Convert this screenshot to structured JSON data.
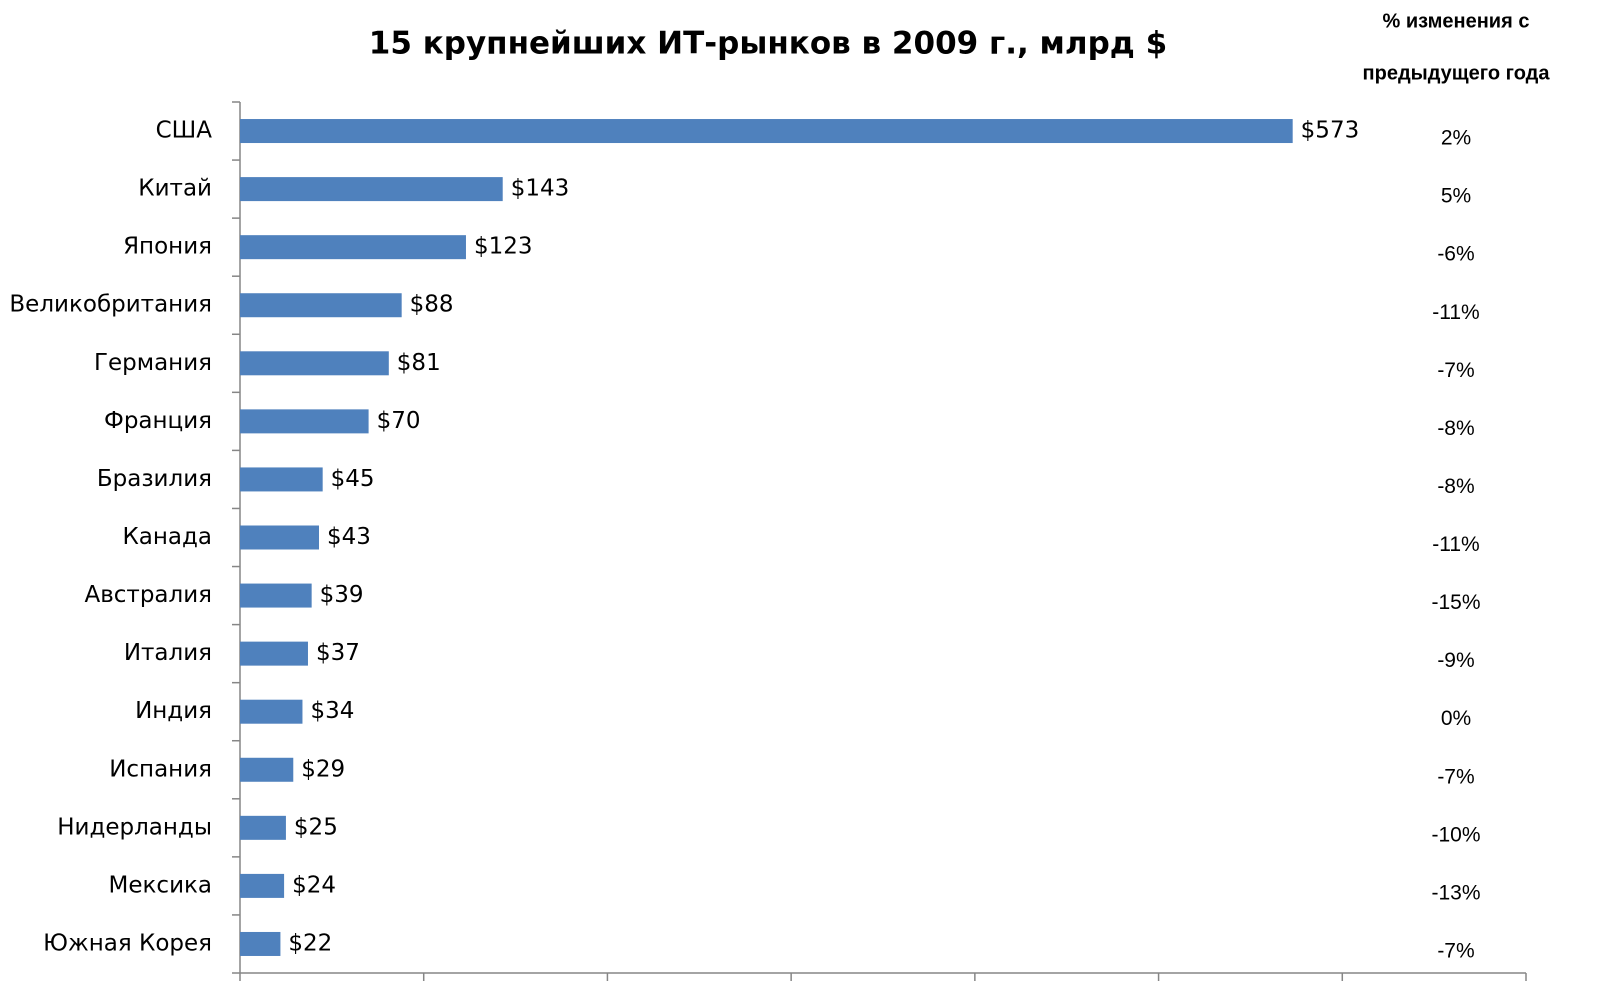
{
  "chart_data": {
    "type": "bar",
    "orientation": "horizontal",
    "title": "15 крупнейших ИТ-рынков в 2009 г., млрд $",
    "categories": [
      "США",
      "Китай",
      "Япония",
      "Великобритания",
      "Германия",
      "Франция",
      "Бразилия",
      "Канада",
      "Австралия",
      "Италия",
      "Индия",
      "Испания",
      "Нидерланды",
      "Мексика",
      "Южная Корея"
    ],
    "values": [
      573,
      143,
      123,
      88,
      81,
      70,
      45,
      43,
      39,
      37,
      34,
      29,
      25,
      24,
      22
    ],
    "value_labels": [
      "$573",
      "$143",
      "$123",
      "$88",
      "$81",
      "$70",
      "$45",
      "$43",
      "$39",
      "$37",
      "$34",
      "$29",
      "$25",
      "$24",
      "$22"
    ],
    "color": "#4f81bd",
    "xlim": [
      0,
      700
    ],
    "xticks": [
      0,
      100,
      200,
      300,
      400,
      500,
      600,
      700
    ],
    "change_title": [
      "% изменения с",
      "предыдущего года"
    ],
    "change_values": [
      2,
      5,
      -6,
      -11,
      -7,
      -8,
      -8,
      -11,
      -15,
      -9,
      0,
      -7,
      -10,
      -13,
      -7
    ],
    "change_labels": [
      "2%",
      "5%",
      "-6%",
      "-11%",
      "-7%",
      "-8%",
      "-8%",
      "-11%",
      "-15%",
      "-9%",
      "0%",
      "-7%",
      "-10%",
      "-13%",
      "-7%"
    ]
  }
}
